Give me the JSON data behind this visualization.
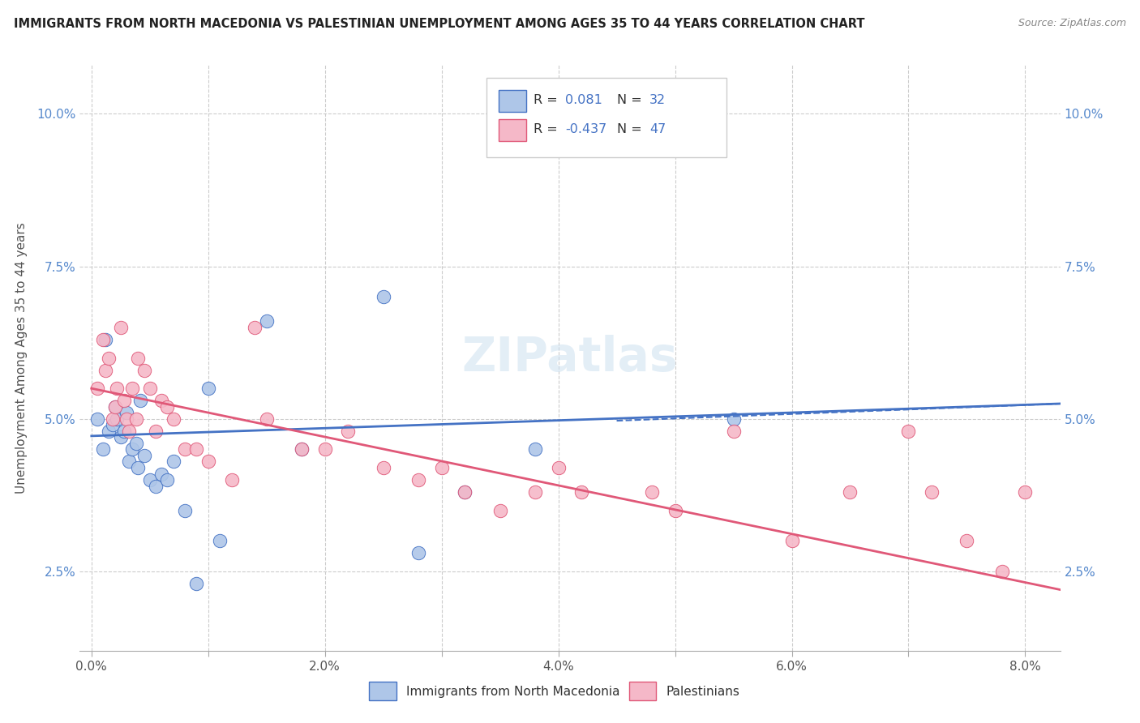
{
  "title": "IMMIGRANTS FROM NORTH MACEDONIA VS PALESTINIAN UNEMPLOYMENT AMONG AGES 35 TO 44 YEARS CORRELATION CHART",
  "source": "Source: ZipAtlas.com",
  "ylabel": "Unemployment Among Ages 35 to 44 years",
  "x_tick_labels": [
    "0.0%",
    "",
    "2.0%",
    "",
    "4.0%",
    "",
    "6.0%",
    "",
    "8.0%"
  ],
  "x_tick_values": [
    0.0,
    1.0,
    2.0,
    3.0,
    4.0,
    5.0,
    6.0,
    7.0,
    8.0
  ],
  "y_tick_labels": [
    "2.5%",
    "5.0%",
    "7.5%",
    "10.0%"
  ],
  "y_tick_values": [
    2.5,
    5.0,
    7.5,
    10.0
  ],
  "xlim": [
    -0.1,
    8.3
  ],
  "ylim": [
    1.2,
    10.8
  ],
  "legend_R1": "0.081",
  "legend_N1": "32",
  "legend_R2": "-0.437",
  "legend_N2": "47",
  "legend_label1": "Immigrants from North Macedonia",
  "legend_label2": "Palestinians",
  "blue_color": "#aec6e8",
  "blue_line_color": "#4472c4",
  "pink_color": "#f5b8c8",
  "pink_line_color": "#e05878",
  "watermark": "ZIPatlas",
  "blue_scatter_x": [
    0.05,
    0.1,
    0.12,
    0.15,
    0.18,
    0.2,
    0.22,
    0.25,
    0.28,
    0.3,
    0.32,
    0.35,
    0.38,
    0.4,
    0.42,
    0.45,
    0.5,
    0.55,
    0.6,
    0.65,
    0.7,
    0.8,
    0.9,
    1.0,
    1.1,
    1.5,
    1.8,
    2.5,
    2.8,
    3.2,
    3.8,
    5.5
  ],
  "blue_scatter_y": [
    5.0,
    4.5,
    6.3,
    4.8,
    4.9,
    5.2,
    5.0,
    4.7,
    4.8,
    5.1,
    4.3,
    4.5,
    4.6,
    4.2,
    5.3,
    4.4,
    4.0,
    3.9,
    4.1,
    4.0,
    4.3,
    3.5,
    2.3,
    5.5,
    3.0,
    6.6,
    4.5,
    7.0,
    2.8,
    3.8,
    4.5,
    5.0
  ],
  "pink_scatter_x": [
    0.05,
    0.1,
    0.12,
    0.15,
    0.18,
    0.2,
    0.22,
    0.25,
    0.28,
    0.3,
    0.32,
    0.35,
    0.38,
    0.4,
    0.45,
    0.5,
    0.55,
    0.6,
    0.65,
    0.7,
    0.8,
    0.9,
    1.0,
    1.2,
    1.4,
    1.5,
    1.8,
    2.0,
    2.2,
    2.5,
    2.8,
    3.0,
    3.2,
    3.5,
    3.8,
    4.0,
    4.2,
    4.8,
    5.0,
    5.5,
    6.0,
    6.5,
    7.0,
    7.2,
    7.5,
    7.8,
    8.0
  ],
  "pink_scatter_y": [
    5.5,
    6.3,
    5.8,
    6.0,
    5.0,
    5.2,
    5.5,
    6.5,
    5.3,
    5.0,
    4.8,
    5.5,
    5.0,
    6.0,
    5.8,
    5.5,
    4.8,
    5.3,
    5.2,
    5.0,
    4.5,
    4.5,
    4.3,
    4.0,
    6.5,
    5.0,
    4.5,
    4.5,
    4.8,
    4.2,
    4.0,
    4.2,
    3.8,
    3.5,
    3.8,
    4.2,
    3.8,
    3.8,
    3.5,
    4.8,
    3.0,
    3.8,
    4.8,
    3.8,
    3.0,
    2.5,
    3.8
  ]
}
